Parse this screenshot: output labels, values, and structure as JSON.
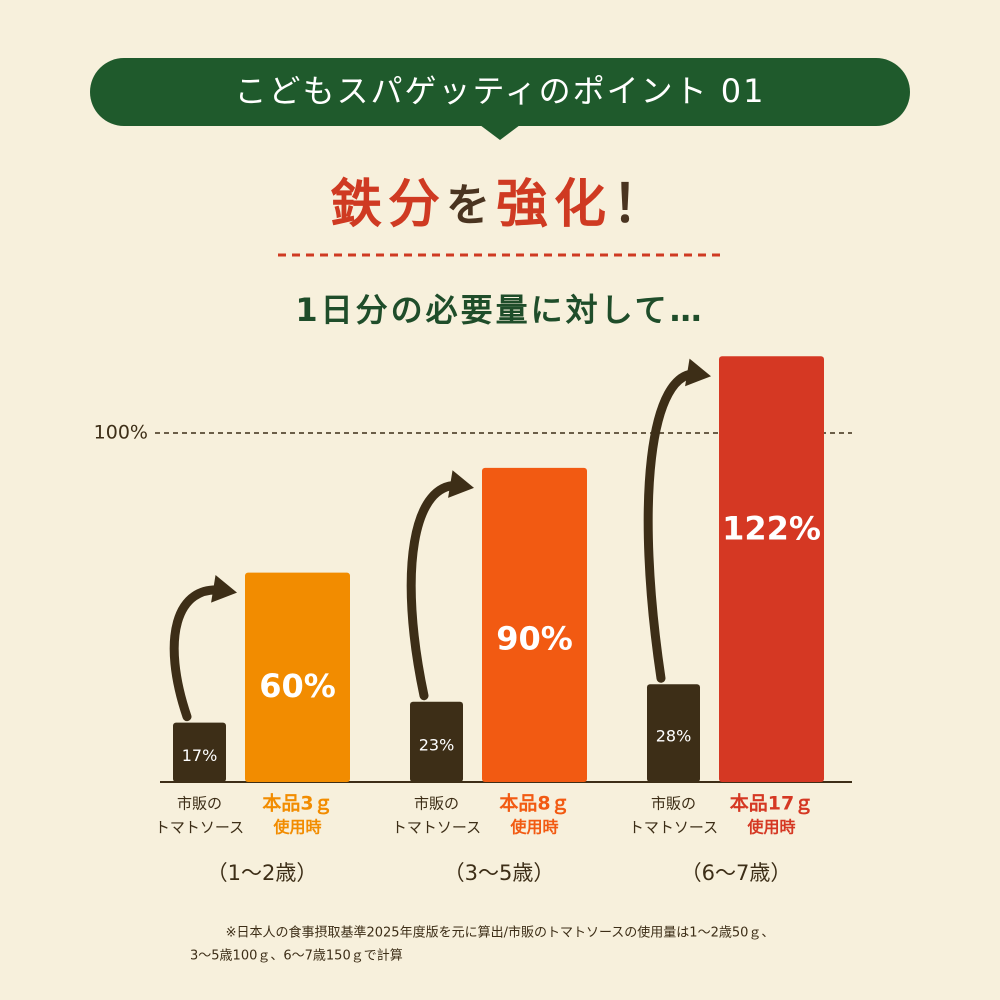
{
  "header": {
    "banner": "こどもスパゲッティのポイント 01",
    "headline": [
      "鉄分",
      "を",
      "強化",
      "！"
    ],
    "subtitle": "1日分の必要量に対して…"
  },
  "chart_data": {
    "type": "bar",
    "categories": [
      "（1〜2歳）",
      "（3〜5歳）",
      "（6〜7歳）"
    ],
    "series": [
      {
        "name_lines": [
          "市販の",
          "トマトソース"
        ],
        "color": "#3d2e17",
        "values": [
          17,
          23,
          28
        ],
        "value_labels": [
          "17%",
          "23%",
          "28%"
        ]
      },
      {
        "bar_labels": [
          [
            "本品3ｇ",
            "使用時"
          ],
          [
            "本品8ｇ",
            "使用時"
          ],
          [
            "本品17ｇ",
            "使用時"
          ]
        ],
        "colors": [
          "#f28c00",
          "#f25a12",
          "#d53823"
        ],
        "values": [
          60,
          90,
          122
        ],
        "value_labels": [
          "60%",
          "90%",
          "122%"
        ]
      }
    ],
    "ylim": [
      0,
      130
    ],
    "yticks": [
      {
        "value": 100,
        "label": "100%"
      }
    ],
    "reference_line": "dashed"
  },
  "footnote": [
    "※日本人の食事摂取基準2025年度版を元に算出/市販のトマトソースの使用量は1〜2歳50ｇ、",
    "3〜5歳100ｇ、6〜7歳150ｇで計算"
  ]
}
